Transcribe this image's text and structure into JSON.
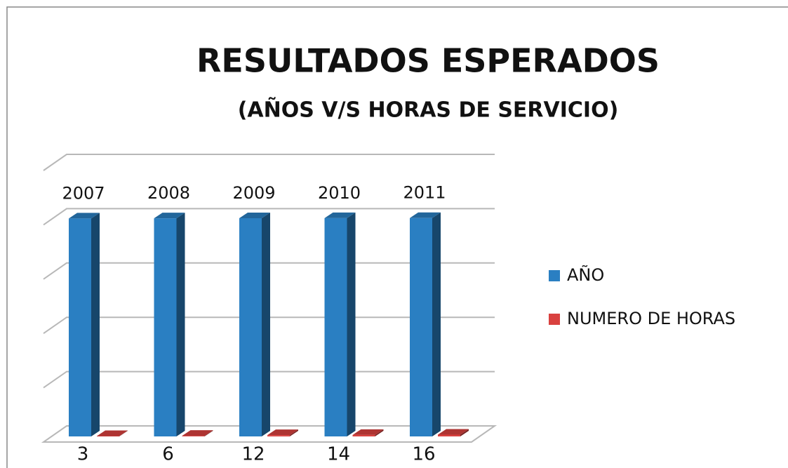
{
  "chart_data": {
    "type": "bar3d",
    "title": "RESULTADOS ESPERADOS",
    "subtitle": "(AÑOS V/S HORAS DE SERVICIO)",
    "categories": [
      "3",
      "6",
      "12",
      "14",
      "16"
    ],
    "series": [
      {
        "name": "AÑO",
        "color": "#2a7fc2",
        "values": [
          2007,
          2008,
          2009,
          2010,
          2011
        ]
      },
      {
        "name": "NUMERO DE HORAS",
        "color": "#d9413f",
        "values": [
          3,
          6,
          12,
          14,
          16
        ]
      }
    ],
    "ylim": [
      0,
      2500
    ],
    "yticks": [
      0,
      500,
      1000,
      1500,
      2000,
      2500
    ],
    "grid": true,
    "legend": "right"
  }
}
